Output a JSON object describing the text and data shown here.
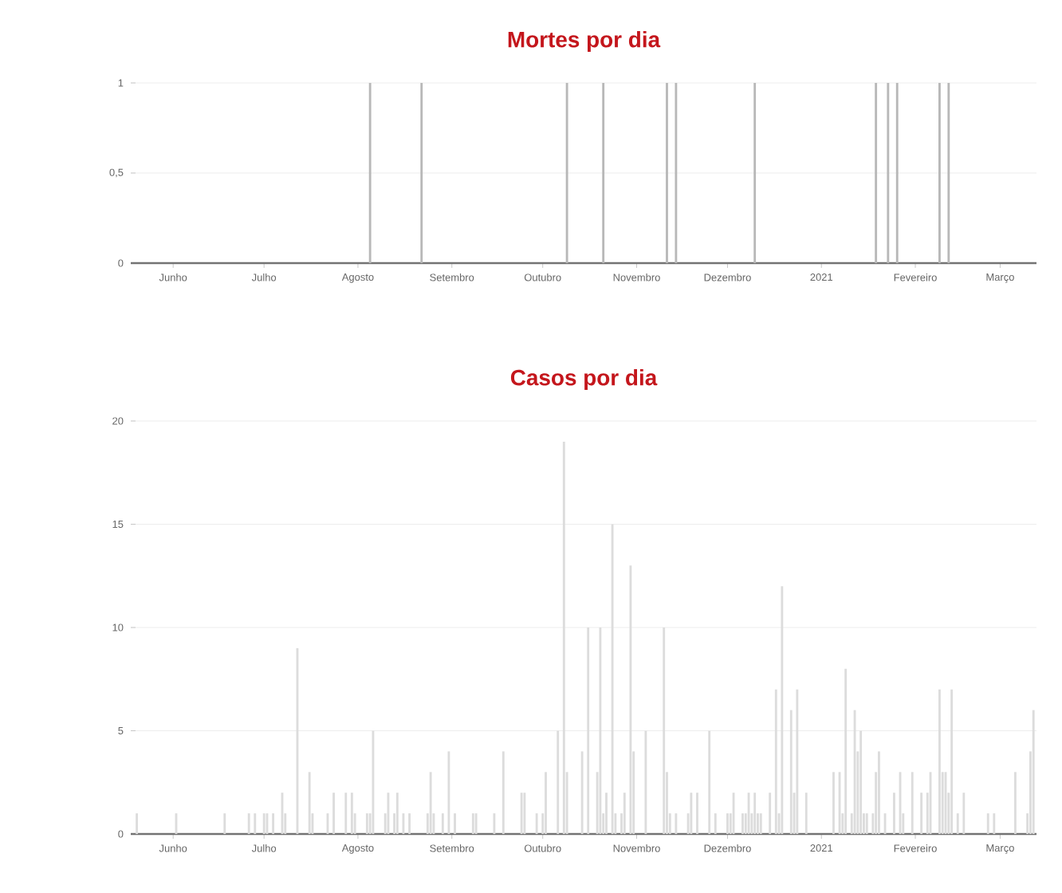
{
  "chart_data": [
    {
      "type": "bar",
      "title": "Mortes por dia",
      "color": "#b8b8b8",
      "x": [
        "2020-08-05",
        "2020-08-22",
        "2020-10-09",
        "2020-10-21",
        "2020-11-11",
        "2020-11-14",
        "2020-12-10",
        "2021-01-19",
        "2021-01-23",
        "2021-01-26",
        "2021-02-09",
        "2021-02-12"
      ],
      "values": [
        1,
        1,
        1,
        1,
        1,
        1,
        1,
        1,
        1,
        1,
        1,
        1
      ],
      "xlim": [
        "2020-05-18",
        "2021-03-13"
      ],
      "xticks": [
        {
          "value": "2020-06-01",
          "label": "Junho"
        },
        {
          "value": "2020-07-01",
          "label": "Julho"
        },
        {
          "value": "2020-08-01",
          "label": "Agosto"
        },
        {
          "value": "2020-09-01",
          "label": "Setembro"
        },
        {
          "value": "2020-10-01",
          "label": "Outubro"
        },
        {
          "value": "2020-11-01",
          "label": "Novembro"
        },
        {
          "value": "2020-12-01",
          "label": "Dezembro"
        },
        {
          "value": "2021-01-01",
          "label": "2021"
        },
        {
          "value": "2021-02-01",
          "label": "Fevereiro"
        },
        {
          "value": "2021-03-01",
          "label": "Março"
        }
      ],
      "ylim": [
        0,
        1
      ],
      "yticks": [
        0,
        {
          "value": 0.5,
          "label": "0,5"
        },
        1
      ],
      "grid": "y"
    },
    {
      "type": "bar",
      "title": "Casos por dia",
      "color": "#dcdcdc",
      "x": [
        "2020-05-20",
        "2020-06-02",
        "2020-06-18",
        "2020-06-26",
        "2020-06-28",
        "2020-07-01",
        "2020-07-02",
        "2020-07-04",
        "2020-07-07",
        "2020-07-08",
        "2020-07-12",
        "2020-07-16",
        "2020-07-17",
        "2020-07-22",
        "2020-07-24",
        "2020-07-28",
        "2020-07-30",
        "2020-07-31",
        "2020-08-04",
        "2020-08-05",
        "2020-08-06",
        "2020-08-10",
        "2020-08-11",
        "2020-08-13",
        "2020-08-14",
        "2020-08-16",
        "2020-08-18",
        "2020-08-24",
        "2020-08-25",
        "2020-08-26",
        "2020-08-29",
        "2020-08-31",
        "2020-09-02",
        "2020-09-08",
        "2020-09-09",
        "2020-09-15",
        "2020-09-18",
        "2020-09-24",
        "2020-09-25",
        "2020-09-29",
        "2020-10-01",
        "2020-10-02",
        "2020-10-06",
        "2020-10-08",
        "2020-10-09",
        "2020-10-14",
        "2020-10-16",
        "2020-10-19",
        "2020-10-20",
        "2020-10-21",
        "2020-10-22",
        "2020-10-24",
        "2020-10-25",
        "2020-10-27",
        "2020-10-28",
        "2020-10-30",
        "2020-10-31",
        "2020-11-04",
        "2020-11-10",
        "2020-11-11",
        "2020-11-12",
        "2020-11-14",
        "2020-11-18",
        "2020-11-19",
        "2020-11-21",
        "2020-11-25",
        "2020-11-27",
        "2020-12-01",
        "2020-12-02",
        "2020-12-03",
        "2020-12-06",
        "2020-12-07",
        "2020-12-08",
        "2020-12-09",
        "2020-12-10",
        "2020-12-11",
        "2020-12-12",
        "2020-12-15",
        "2020-12-17",
        "2020-12-18",
        "2020-12-19",
        "2020-12-22",
        "2020-12-23",
        "2020-12-24",
        "2020-12-27",
        "2021-01-05",
        "2021-01-07",
        "2021-01-08",
        "2021-01-09",
        "2021-01-11",
        "2021-01-12",
        "2021-01-13",
        "2021-01-14",
        "2021-01-15",
        "2021-01-16",
        "2021-01-18",
        "2021-01-19",
        "2021-01-20",
        "2021-01-22",
        "2021-01-25",
        "2021-01-27",
        "2021-01-28",
        "2021-01-31",
        "2021-02-03",
        "2021-02-05",
        "2021-02-06",
        "2021-02-09",
        "2021-02-10",
        "2021-02-11",
        "2021-02-12",
        "2021-02-13",
        "2021-02-15",
        "2021-02-17",
        "2021-02-25",
        "2021-02-27",
        "2021-03-06",
        "2021-03-10",
        "2021-03-11",
        "2021-03-12"
      ],
      "values": [
        1,
        1,
        1,
        1,
        1,
        1,
        1,
        1,
        2,
        1,
        9,
        3,
        1,
        1,
        2,
        2,
        2,
        1,
        1,
        1,
        5,
        1,
        2,
        1,
        2,
        1,
        1,
        1,
        3,
        1,
        1,
        4,
        1,
        1,
        1,
        1,
        4,
        2,
        2,
        1,
        1,
        3,
        5,
        19,
        3,
        4,
        10,
        3,
        10,
        1,
        2,
        15,
        1,
        1,
        2,
        13,
        4,
        5,
        10,
        3,
        1,
        1,
        1,
        2,
        2,
        5,
        1,
        1,
        1,
        2,
        1,
        1,
        2,
        1,
        2,
        1,
        1,
        2,
        7,
        1,
        12,
        6,
        2,
        7,
        2,
        3,
        3,
        1,
        8,
        1,
        6,
        4,
        5,
        1,
        1,
        1,
        3,
        4,
        1,
        2,
        3,
        1,
        3,
        2,
        2,
        3,
        7,
        3,
        3,
        2,
        7,
        1,
        2,
        1,
        1,
        3,
        1,
        4,
        6
      ],
      "xlim": [
        "2020-05-18",
        "2021-03-13"
      ],
      "xticks": [
        {
          "value": "2020-06-01",
          "label": "Junho"
        },
        {
          "value": "2020-07-01",
          "label": "Julho"
        },
        {
          "value": "2020-08-01",
          "label": "Agosto"
        },
        {
          "value": "2020-09-01",
          "label": "Setembro"
        },
        {
          "value": "2020-10-01",
          "label": "Outubro"
        },
        {
          "value": "2020-11-01",
          "label": "Novembro"
        },
        {
          "value": "2020-12-01",
          "label": "Dezembro"
        },
        {
          "value": "2021-01-01",
          "label": "2021"
        },
        {
          "value": "2021-02-01",
          "label": "Fevereiro"
        },
        {
          "value": "2021-03-01",
          "label": "Março"
        }
      ],
      "ylim": [
        0,
        20
      ],
      "yticks": [
        0,
        5,
        10,
        15,
        20
      ],
      "grid": "y"
    }
  ]
}
